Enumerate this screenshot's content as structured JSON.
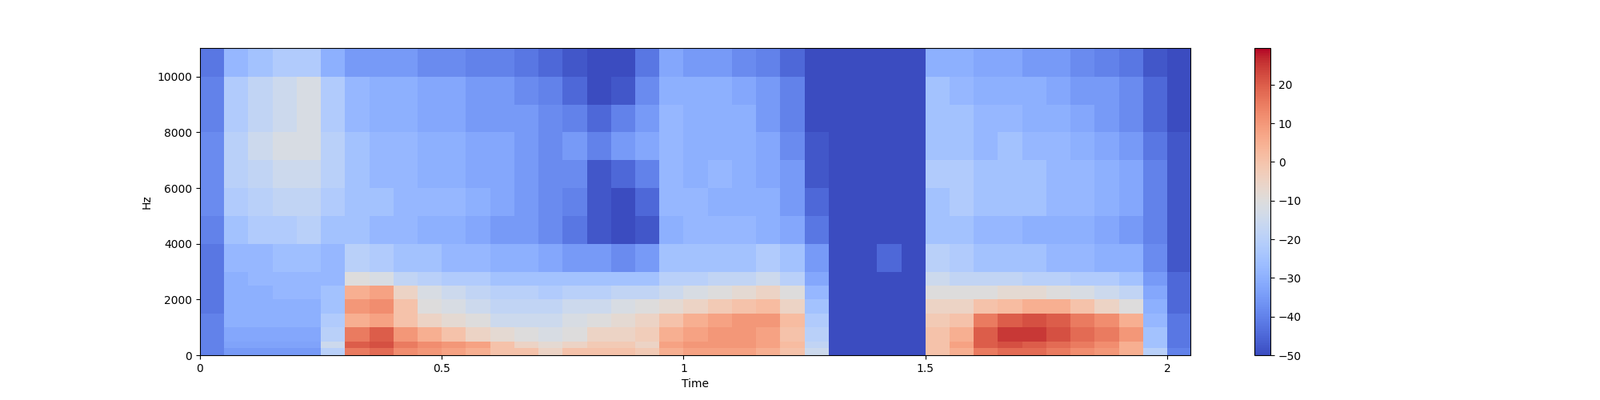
{
  "chart_data": {
    "type": "heatmap",
    "x_label": "Time",
    "y_label": "Hz",
    "xlim": [
      0,
      2.048
    ],
    "ylim": [
      0,
      11025
    ],
    "xticks": [
      0,
      0.5,
      1,
      1.5,
      2
    ],
    "yticks": [
      0,
      2000,
      4000,
      6000,
      8000,
      10000
    ],
    "color": "coolwarm",
    "x_edges": [
      0,
      0.05,
      0.1,
      0.15,
      0.2,
      0.25,
      0.3,
      0.35,
      0.4,
      0.45,
      0.5,
      0.55,
      0.6,
      0.65,
      0.7,
      0.75,
      0.8,
      0.85,
      0.9,
      0.95,
      1.0,
      1.05,
      1.1,
      1.15,
      1.2,
      1.25,
      1.3,
      1.35,
      1.4,
      1.45,
      1.5,
      1.55,
      1.6,
      1.65,
      1.7,
      1.75,
      1.8,
      1.85,
      1.9,
      1.95,
      2.0,
      2.05
    ],
    "y_edges": [
      0,
      250,
      500,
      1000,
      1500,
      2000,
      2500,
      3000,
      4000,
      5000,
      6000,
      7000,
      8000,
      9000,
      10000,
      11025
    ],
    "cells": [
      [
        -40,
        -35,
        -35,
        -35,
        -35,
        -20,
        15,
        18,
        12,
        10,
        8,
        5,
        0,
        0,
        -5,
        0,
        0,
        0,
        -2,
        5,
        8,
        8,
        8,
        5,
        0,
        -15,
        -50,
        -50,
        -50,
        -50,
        0,
        5,
        15,
        18,
        18,
        15,
        12,
        10,
        5,
        -20,
        -40
      ],
      [
        -40,
        -33,
        -33,
        -33,
        -33,
        -15,
        20,
        22,
        15,
        12,
        10,
        8,
        0,
        -5,
        -8,
        -5,
        -2,
        -2,
        -5,
        8,
        10,
        10,
        10,
        8,
        2,
        -18,
        -50,
        -50,
        -50,
        -50,
        0,
        8,
        20,
        22,
        20,
        18,
        15,
        12,
        5,
        -25,
        -42
      ],
      [
        -40,
        -32,
        -32,
        -32,
        -32,
        -20,
        15,
        20,
        10,
        5,
        0,
        -5,
        -8,
        -10,
        -12,
        -10,
        -5,
        -5,
        -3,
        5,
        8,
        10,
        10,
        8,
        0,
        -20,
        -50,
        -50,
        -50,
        -50,
        0,
        5,
        20,
        25,
        25,
        22,
        18,
        15,
        10,
        -25,
        -42
      ],
      [
        -40,
        -30,
        -30,
        -30,
        -30,
        -22,
        5,
        8,
        0,
        -5,
        -8,
        -10,
        -15,
        -15,
        -15,
        -12,
        -10,
        -8,
        -5,
        0,
        5,
        8,
        10,
        10,
        2,
        -22,
        -50,
        -50,
        -50,
        -50,
        -2,
        0,
        15,
        20,
        22,
        20,
        15,
        12,
        5,
        -28,
        -42
      ],
      [
        -42,
        -30,
        -30,
        -30,
        -30,
        -25,
        10,
        12,
        0,
        -10,
        -12,
        -15,
        -18,
        -18,
        -18,
        -15,
        -15,
        -12,
        -10,
        -8,
        -5,
        -2,
        0,
        2,
        -5,
        -25,
        -50,
        -50,
        -50,
        -50,
        -5,
        -5,
        0,
        2,
        5,
        5,
        0,
        -5,
        -10,
        -30,
        -45
      ],
      [
        -42,
        -30,
        -30,
        -28,
        -28,
        -25,
        5,
        8,
        -5,
        -12,
        -15,
        -18,
        -20,
        -20,
        -22,
        -20,
        -20,
        -18,
        -18,
        -15,
        -12,
        -10,
        -8,
        -5,
        -10,
        -28,
        -50,
        -50,
        -50,
        -50,
        -10,
        -10,
        -10,
        -8,
        -8,
        -10,
        -12,
        -15,
        -18,
        -32,
        -45
      ],
      [
        -42,
        -30,
        -28,
        -28,
        -28,
        -28,
        -10,
        -12,
        -18,
        -20,
        -22,
        -22,
        -25,
        -25,
        -25,
        -25,
        -25,
        -25,
        -25,
        -20,
        -20,
        -18,
        -18,
        -15,
        -20,
        -32,
        -50,
        -50,
        -50,
        -50,
        -15,
        -18,
        -18,
        -18,
        -20,
        -20,
        -22,
        -22,
        -25,
        -35,
        -45
      ],
      [
        -42,
        -28,
        -28,
        -26,
        -26,
        -28,
        -20,
        -22,
        -25,
        -25,
        -28,
        -28,
        -30,
        -30,
        -32,
        -35,
        -35,
        -38,
        -35,
        -25,
        -25,
        -25,
        -25,
        -22,
        -25,
        -35,
        -50,
        -50,
        -45,
        -50,
        -20,
        -22,
        -25,
        -25,
        -25,
        -28,
        -28,
        -30,
        -30,
        -38,
        -48
      ],
      [
        -40,
        -25,
        -22,
        -22,
        -20,
        -25,
        -25,
        -28,
        -28,
        -30,
        -30,
        -32,
        -35,
        -35,
        -38,
        -42,
        -48,
        -50,
        -48,
        -30,
        -28,
        -28,
        -28,
        -30,
        -32,
        -42,
        -50,
        -50,
        -50,
        -50,
        -25,
        -25,
        -28,
        -28,
        -30,
        -30,
        -30,
        -32,
        -35,
        -40,
        -48
      ],
      [
        -38,
        -22,
        -20,
        -18,
        -18,
        -22,
        -25,
        -25,
        -28,
        -28,
        -28,
        -30,
        -32,
        -35,
        -38,
        -40,
        -48,
        -50,
        -45,
        -28,
        -28,
        -30,
        -30,
        -30,
        -35,
        -45,
        -50,
        -50,
        -50,
        -50,
        -25,
        -22,
        -25,
        -25,
        -25,
        -28,
        -28,
        -30,
        -32,
        -40,
        -48
      ],
      [
        -38,
        -20,
        -18,
        -15,
        -15,
        -20,
        -25,
        -28,
        -28,
        -30,
        -30,
        -32,
        -32,
        -35,
        -38,
        -38,
        -48,
        -45,
        -40,
        -28,
        -30,
        -28,
        -30,
        -32,
        -35,
        -48,
        -50,
        -50,
        -50,
        -50,
        -22,
        -22,
        -25,
        -25,
        -25,
        -28,
        -28,
        -30,
        -32,
        -40,
        -48
      ],
      [
        -38,
        -20,
        -15,
        -12,
        -12,
        -20,
        -25,
        -28,
        -28,
        -30,
        -30,
        -32,
        -32,
        -35,
        -38,
        -35,
        -40,
        -35,
        -32,
        -28,
        -30,
        -30,
        -30,
        -32,
        -38,
        -48,
        -50,
        -50,
        -50,
        -50,
        -25,
        -25,
        -28,
        -25,
        -28,
        -28,
        -30,
        -32,
        -35,
        -42,
        -48
      ],
      [
        -40,
        -22,
        -18,
        -15,
        -12,
        -22,
        -28,
        -30,
        -30,
        -32,
        -32,
        -35,
        -35,
        -35,
        -38,
        -40,
        -45,
        -40,
        -35,
        -28,
        -30,
        -30,
        -30,
        -35,
        -40,
        -50,
        -50,
        -50,
        -50,
        -50,
        -25,
        -25,
        -28,
        -28,
        -30,
        -30,
        -32,
        -35,
        -38,
        -45,
        -50
      ],
      [
        -40,
        -22,
        -18,
        -15,
        -12,
        -22,
        -28,
        -30,
        -30,
        -32,
        -32,
        -35,
        -35,
        -38,
        -40,
        -45,
        -50,
        -48,
        -38,
        -30,
        -30,
        -30,
        -32,
        -35,
        -40,
        -50,
        -50,
        -50,
        -50,
        -50,
        -25,
        -28,
        -30,
        -30,
        -30,
        -32,
        -35,
        -35,
        -38,
        -45,
        -50
      ],
      [
        -42,
        -28,
        -25,
        -22,
        -22,
        -30,
        -35,
        -35,
        -35,
        -38,
        -38,
        -40,
        -40,
        -42,
        -45,
        -48,
        -50,
        -50,
        -42,
        -32,
        -35,
        -35,
        -38,
        -40,
        -45,
        -50,
        -50,
        -50,
        -50,
        -50,
        -30,
        -30,
        -32,
        -32,
        -35,
        -35,
        -38,
        -40,
        -42,
        -48,
        -50
      ]
    ],
    "clim": [
      -50,
      29.5
    ],
    "colorbar_ticks": [
      {
        "value": -50,
        "label": "−50"
      },
      {
        "value": -40,
        "label": "−40"
      },
      {
        "value": -30,
        "label": "−30"
      },
      {
        "value": -20,
        "label": "−20"
      },
      {
        "value": -10,
        "label": "−10"
      },
      0,
      10,
      20
    ]
  }
}
